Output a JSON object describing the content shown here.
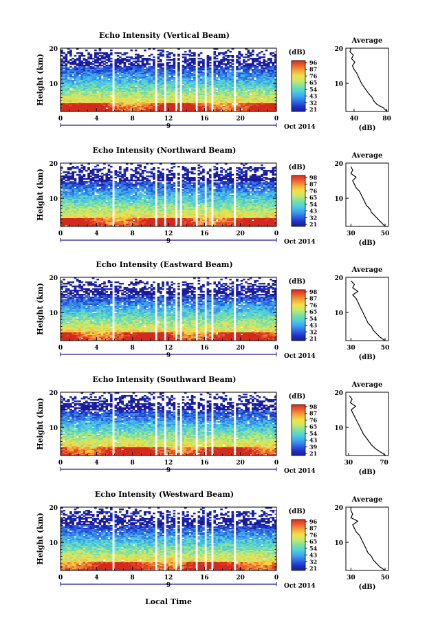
{
  "figure": {
    "xlabel": "Local Time",
    "date_label": "Oct 2014",
    "day_label": "9",
    "ylabel": "Height (km)",
    "colorbar_unit": "(dB)",
    "average_title": "Average",
    "average_xlabel": "(dB)"
  },
  "colors": {
    "colormap": [
      "#1a1a9a",
      "#2035c8",
      "#2f6fe6",
      "#3fa8f0",
      "#4fd2d8",
      "#7fe0a0",
      "#c8e86a",
      "#f2e04a",
      "#f4a83a",
      "#ee6030",
      "#d42a1e"
    ],
    "frame": "#000000",
    "day_marker": "#1a1a9a"
  },
  "chart_data": [
    {
      "type": "heatmap",
      "title": "Echo Intensity (Vertical Beam)",
      "xlim": [
        0,
        24
      ],
      "x_ticks": [
        "0",
        "4",
        "8",
        "12",
        "16",
        "20",
        "0"
      ],
      "ylim": [
        2,
        20
      ],
      "y_ticks": [
        "20",
        "10"
      ],
      "colorbar_ticks": [
        "96",
        "87",
        "76",
        "65",
        "54",
        "43",
        "32",
        "21"
      ],
      "average": {
        "x_ticks": [
          "40",
          "80"
        ],
        "xlim": [
          30,
          82
        ],
        "height_km": [
          2,
          3,
          4,
          5,
          6,
          7,
          8,
          9,
          10,
          11,
          12,
          13,
          14,
          15,
          16,
          17,
          18,
          19,
          20
        ],
        "value_db": [
          80,
          76,
          68,
          64,
          62,
          58,
          55,
          52,
          49,
          47,
          45,
          43,
          40,
          38,
          41,
          37,
          39,
          35,
          36
        ]
      }
    },
    {
      "type": "heatmap",
      "title": "Echo Intensity (Northward Beam)",
      "xlim": [
        0,
        24
      ],
      "x_ticks": [
        "0",
        "4",
        "8",
        "12",
        "16",
        "20",
        "0"
      ],
      "ylim": [
        2,
        20
      ],
      "y_ticks": [
        "20",
        "10"
      ],
      "colorbar_ticks": [
        "98",
        "87",
        "76",
        "65",
        "54",
        "43",
        "32",
        "21"
      ],
      "average": {
        "x_ticks": [
          "30",
          "50"
        ],
        "xlim": [
          27,
          52
        ],
        "height_km": [
          2,
          3,
          4,
          5,
          6,
          7,
          8,
          9,
          10,
          11,
          12,
          13,
          14,
          15,
          16,
          17,
          18,
          19
        ],
        "value_db": [
          50,
          48,
          46,
          44,
          42,
          41,
          39,
          38,
          37,
          36,
          35,
          33,
          32,
          31,
          33,
          30,
          31,
          30
        ]
      }
    },
    {
      "type": "heatmap",
      "title": "Echo Intensity (Eastward Beam)",
      "xlim": [
        0,
        24
      ],
      "x_ticks": [
        "0",
        "4",
        "8",
        "12",
        "16",
        "20",
        "0"
      ],
      "ylim": [
        2,
        20
      ],
      "y_ticks": [
        "20",
        "10"
      ],
      "colorbar_ticks": [
        "98",
        "87",
        "76",
        "65",
        "54",
        "43",
        "32",
        "21"
      ],
      "average": {
        "x_ticks": [
          "30",
          "50"
        ],
        "xlim": [
          27,
          52
        ],
        "height_km": [
          2,
          3,
          4,
          5,
          6,
          7,
          8,
          9,
          10,
          11,
          12,
          13,
          14,
          15,
          16,
          17,
          18,
          19
        ],
        "value_db": [
          50,
          47,
          45,
          43,
          42,
          40,
          39,
          38,
          37,
          36,
          35,
          34,
          33,
          31,
          34,
          31,
          32,
          30
        ]
      }
    },
    {
      "type": "heatmap",
      "title": "Echo Intensity (Southward Beam)",
      "xlim": [
        0,
        24
      ],
      "x_ticks": [
        "0",
        "4",
        "8",
        "12",
        "16",
        "20",
        "0"
      ],
      "ylim": [
        2,
        20
      ],
      "y_ticks": [
        "20",
        "10"
      ],
      "colorbar_ticks": [
        "98",
        "87",
        "76",
        "65",
        "54",
        "43",
        "39",
        "21"
      ],
      "average": {
        "x_ticks": [
          "30",
          "70"
        ],
        "xlim": [
          27,
          75
        ],
        "height_km": [
          2,
          3,
          4,
          5,
          6,
          7,
          8,
          9,
          10,
          11,
          12,
          13,
          14,
          15,
          16,
          17,
          18,
          19
        ],
        "value_db": [
          72,
          66,
          60,
          56,
          53,
          50,
          47,
          45,
          43,
          41,
          39,
          37,
          35,
          33,
          38,
          32,
          34,
          31
        ]
      }
    },
    {
      "type": "heatmap",
      "title": "Echo Intensity (Westward Beam)",
      "xlim": [
        0,
        24
      ],
      "x_ticks": [
        "0",
        "4",
        "8",
        "12",
        "16",
        "20",
        "0"
      ],
      "ylim": [
        2,
        20
      ],
      "y_ticks": [
        "20",
        "10"
      ],
      "colorbar_ticks": [
        "96",
        "87",
        "76",
        "65",
        "54",
        "43",
        "32",
        "21"
      ],
      "average": {
        "x_ticks": [
          "30",
          "50"
        ],
        "xlim": [
          27,
          52
        ],
        "height_km": [
          2,
          3,
          4,
          5,
          6,
          7,
          8,
          9,
          10,
          11,
          12,
          13,
          14,
          15,
          16,
          17,
          18,
          19,
          20
        ],
        "value_db": [
          50,
          47,
          45,
          43,
          42,
          40,
          39,
          38,
          37,
          36,
          35,
          33,
          32,
          31,
          34,
          30,
          31,
          30,
          30
        ]
      }
    }
  ]
}
